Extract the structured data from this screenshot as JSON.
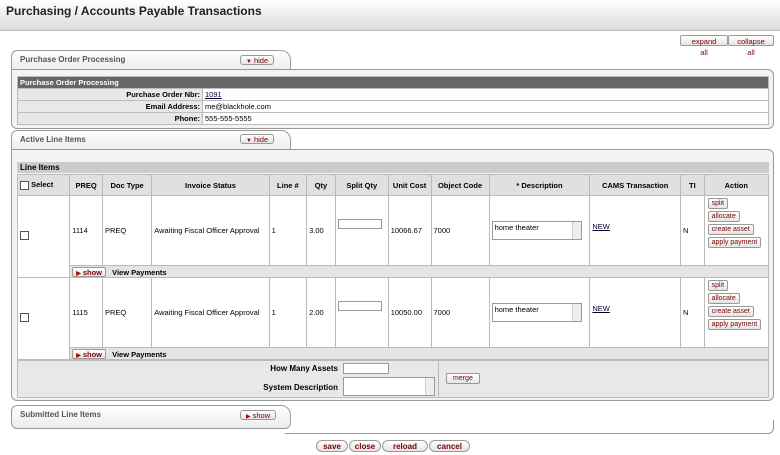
{
  "page": {
    "title": "Purchasing / Accounts Payable Transactions"
  },
  "toolbar": {
    "expand_all": "expand all",
    "collapse_all": "collapse all"
  },
  "po_tab": {
    "label": "Purchase Order Processing",
    "hide": "hide"
  },
  "po_section": {
    "header": "Purchase Order Processing",
    "fields": [
      {
        "label": "Purchase Order Nbr:",
        "value": "1091",
        "link": true
      },
      {
        "label": "Email Address:",
        "value": "me@blackhole.com",
        "link": false
      },
      {
        "label": "Phone:",
        "value": "555-555-5555",
        "link": false
      }
    ]
  },
  "active_tab": {
    "label": "Active Line Items",
    "hide": "hide"
  },
  "line_items": {
    "title": "Line Items",
    "select_label": "Select",
    "columns": [
      "PREQ",
      "Doc Type",
      "Invoice Status",
      "Line #",
      "Qty",
      "Split Qty",
      "Unit Cost",
      "Object Code",
      "* Description",
      "CAMS Transaction",
      "TI",
      "Action"
    ],
    "rows": [
      {
        "preq": "1114",
        "doc_type": "PREQ",
        "status": "Awaiting Fiscal Officer Approval",
        "line": "1",
        "qty": "3.00",
        "unit_cost": "10066.67",
        "object_code": "7000",
        "description": "home theater",
        "cams": "NEW",
        "ti": "N"
      },
      {
        "preq": "1115",
        "doc_type": "PREQ",
        "status": "Awaiting Fiscal Officer Approval",
        "line": "1",
        "qty": "2.00",
        "unit_cost": "10050.00",
        "object_code": "7000",
        "description": "home theater",
        "cams": "NEW",
        "ti": "N"
      }
    ],
    "actions": {
      "split": "split",
      "allocate": "allocate",
      "create_asset": "create asset",
      "apply_payment": "apply payment"
    },
    "show": "show",
    "view_payments": "View Payments",
    "how_many_assets": "How Many Assets",
    "system_description": "System Description",
    "merge": "merge"
  },
  "submitted_tab": {
    "label": "Submitted Line Items",
    "show": "show"
  },
  "footer": {
    "save": "save",
    "close": "close",
    "reload": "reload",
    "cancel": "cancel"
  }
}
